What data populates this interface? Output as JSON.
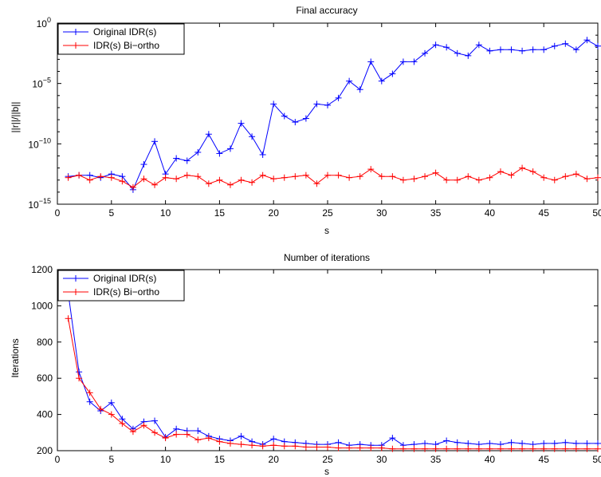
{
  "chart_data": [
    {
      "type": "line",
      "title": "Final accuracy",
      "xlabel": "s",
      "ylabel": "||r||/||b||",
      "xlim": [
        0,
        50
      ],
      "ylim_exponent": [
        -15,
        0
      ],
      "yscale": "log",
      "xticks": [
        "0",
        "5",
        "10",
        "15",
        "20",
        "25",
        "30",
        "35",
        "40",
        "45",
        "50"
      ],
      "yticks": [
        {
          "base": "10",
          "exp": "0"
        },
        {
          "base": "10",
          "exp": "−5"
        },
        {
          "base": "10",
          "exp": "−10"
        },
        {
          "base": "10",
          "exp": "−15"
        }
      ],
      "legend_position": "top-left",
      "grid": false,
      "x": [
        1,
        2,
        3,
        4,
        5,
        6,
        7,
        8,
        9,
        10,
        11,
        12,
        13,
        14,
        15,
        16,
        17,
        18,
        19,
        20,
        21,
        22,
        23,
        24,
        25,
        26,
        27,
        28,
        29,
        30,
        31,
        32,
        33,
        34,
        35,
        36,
        37,
        38,
        39,
        40,
        41,
        42,
        43,
        44,
        45,
        46,
        47,
        48,
        49,
        50
      ],
      "series": [
        {
          "name": "Original IDR(s)",
          "color": "#0000ff",
          "exp_values": [
            -12.7,
            -12.6,
            -12.6,
            -12.8,
            -12.5,
            -12.7,
            -13.8,
            -11.7,
            -9.8,
            -12.5,
            -11.2,
            -11.4,
            -10.7,
            -9.2,
            -10.8,
            -10.4,
            -8.3,
            -9.4,
            -10.9,
            -6.7,
            -7.7,
            -8.2,
            -7.9,
            -6.7,
            -6.8,
            -6.2,
            -4.8,
            -5.5,
            -3.2,
            -4.8,
            -4.2,
            -3.2,
            -3.2,
            -2.5,
            -1.8,
            -2.0,
            -2.5,
            -2.7,
            -1.8,
            -2.3,
            -2.2,
            -2.2,
            -2.3,
            -2.2,
            -2.2,
            -1.9,
            -1.7,
            -2.2,
            -1.4,
            -1.9
          ]
        },
        {
          "name": "IDR(s) Bi−ortho",
          "color": "#ff0000",
          "exp_values": [
            -12.8,
            -12.6,
            -13.0,
            -12.7,
            -12.8,
            -13.1,
            -13.6,
            -12.9,
            -13.4,
            -12.8,
            -12.9,
            -12.6,
            -12.7,
            -13.3,
            -13.0,
            -13.4,
            -13.0,
            -13.2,
            -12.6,
            -12.9,
            -12.8,
            -12.7,
            -12.6,
            -13.3,
            -12.6,
            -12.6,
            -12.8,
            -12.7,
            -12.1,
            -12.7,
            -12.7,
            -13.0,
            -12.9,
            -12.7,
            -12.4,
            -13.0,
            -13.0,
            -12.7,
            -13.0,
            -12.8,
            -12.3,
            -12.6,
            -12.0,
            -12.3,
            -12.8,
            -13.0,
            -12.7,
            -12.5,
            -12.9,
            -12.8
          ]
        }
      ]
    },
    {
      "type": "line",
      "title": "Number of iterations",
      "xlabel": "s",
      "ylabel": "Iterations",
      "xlim": [
        0,
        50
      ],
      "ylim": [
        200,
        1200
      ],
      "xticks": [
        "0",
        "5",
        "10",
        "15",
        "20",
        "25",
        "30",
        "35",
        "40",
        "45",
        "50"
      ],
      "yticks": [
        "200",
        "400",
        "600",
        "800",
        "1000",
        "1200"
      ],
      "legend_position": "top-left",
      "grid": false,
      "x": [
        1,
        2,
        3,
        4,
        5,
        6,
        7,
        8,
        9,
        10,
        11,
        12,
        13,
        14,
        15,
        16,
        17,
        18,
        19,
        20,
        21,
        22,
        23,
        24,
        25,
        26,
        27,
        28,
        29,
        30,
        31,
        32,
        33,
        34,
        35,
        36,
        37,
        38,
        39,
        40,
        41,
        42,
        43,
        44,
        45,
        46,
        47,
        48,
        49,
        50
      ],
      "series": [
        {
          "name": "Original IDR(s)",
          "color": "#0000ff",
          "values": [
            1070,
            635,
            470,
            420,
            465,
            375,
            320,
            360,
            365,
            275,
            320,
            310,
            310,
            280,
            265,
            255,
            280,
            250,
            235,
            265,
            250,
            245,
            240,
            235,
            235,
            245,
            230,
            235,
            230,
            230,
            270,
            230,
            235,
            240,
            235,
            255,
            245,
            240,
            235,
            240,
            235,
            245,
            240,
            235,
            240,
            240,
            245,
            240,
            240,
            240
          ]
        },
        {
          "name": "IDR(s) Bi−ortho",
          "color": "#ff0000",
          "values": [
            930,
            600,
            520,
            430,
            400,
            350,
            305,
            340,
            300,
            270,
            290,
            290,
            260,
            270,
            250,
            240,
            235,
            230,
            225,
            230,
            225,
            225,
            220,
            220,
            220,
            215,
            215,
            215,
            215,
            215,
            210,
            210,
            210,
            210,
            210,
            210,
            210,
            210,
            210,
            210,
            210,
            210,
            210,
            210,
            210,
            210,
            210,
            210,
            210,
            210
          ]
        }
      ]
    }
  ]
}
